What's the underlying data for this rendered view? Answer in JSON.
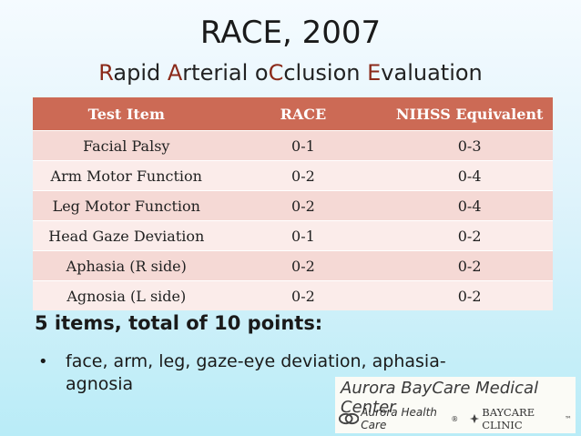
{
  "title": "RACE, 2007",
  "subtitle": {
    "parts": [
      {
        "text": "R",
        "hl": true
      },
      {
        "text": "apid ",
        "hl": false
      },
      {
        "text": "A",
        "hl": true
      },
      {
        "text": "rterial o",
        "hl": false
      },
      {
        "text": "C",
        "hl": true
      },
      {
        "text": "clusion ",
        "hl": false
      },
      {
        "text": "E",
        "hl": true
      },
      {
        "text": "valuation",
        "hl": false
      }
    ]
  },
  "table": {
    "headers": [
      "Test Item",
      "RACE",
      "NIHSS Equivalent"
    ],
    "rows": [
      [
        "Facial Palsy",
        "0-1",
        "0-3"
      ],
      [
        "Arm Motor Function",
        "0-2",
        "0-4"
      ],
      [
        "Leg Motor Function",
        "0-2",
        "0-4"
      ],
      [
        "Head Gaze Deviation",
        "0-1",
        "0-2"
      ],
      [
        "Aphasia (R side)",
        "0-2",
        "0-2"
      ],
      [
        "Agnosia (L side)",
        "0-2",
        "0-2"
      ]
    ]
  },
  "summary": "5 items, total of 10 points:",
  "bullet": {
    "glyph": "•",
    "text": "face, arm, leg, gaze-eye deviation, aphasia-agnosia"
  },
  "logo": {
    "line1": "Aurora BayCare Medical Center",
    "ahc": "Aurora Health Care",
    "ahc_mark": "®",
    "bcc": "BAYCARE CLINIC",
    "bcc_mark": "™"
  },
  "colors": {
    "header_bg": "#cc6a55",
    "row_odd": "#f5d9d5",
    "row_even": "#fbecea",
    "subtitle_highlight": "#8b2a1a"
  }
}
